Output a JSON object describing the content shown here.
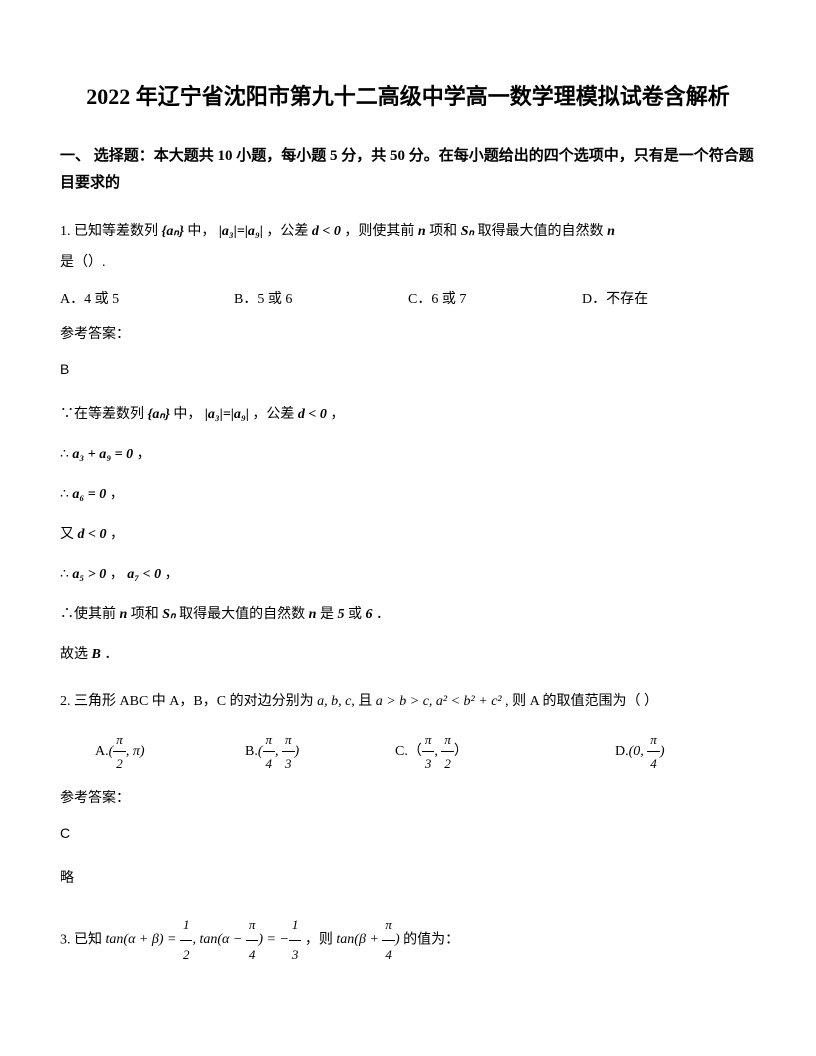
{
  "title": "2022 年辽宁省沈阳市第九十二高级中学高一数学理模拟试卷含解析",
  "section1": {
    "header": "一、 选择题：本大题共 10 小题，每小题 5 分，共 50 分。在每小题给出的四个选项中，只有是一个符合题目要求的"
  },
  "q1": {
    "text_pre": "1. 已知等差数列",
    "seq": "{aₙ}",
    "text_mid1": "中，",
    "cond1": "|a₃|=|a₉|",
    "text_mid2": "，公差",
    "cond2": "d < 0",
    "text_mid3": "，则使其前",
    "var_n": "n",
    "text_mid4": "项和",
    "var_sn": "Sₙ",
    "text_mid5": "取得最大值的自然数",
    "text_end": "是（）.",
    "optA": "A．4 或 5",
    "optB": "B．5 或 6",
    "optC": "C．6 或 7",
    "optD": "D．不存在",
    "answer_label": "参考答案：",
    "answer": "B",
    "sol1_pre": "∵在等差数列",
    "sol1_mid": "中，",
    "sol1_end": "，公差",
    "sol1_last": "，",
    "sol2": "∴",
    "sol2_eq": "a₃ + a₉ = 0",
    "sol2_end": "，",
    "sol3": "∴",
    "sol3_eq": "a₆ = 0",
    "sol3_end": "，",
    "sol4": "又",
    "sol4_eq": "d < 0",
    "sol4_end": "，",
    "sol5": "∴",
    "sol5_eq1": "a₅ > 0",
    "sol5_mid": "，",
    "sol5_eq2": "a₇ < 0",
    "sol5_end": "，",
    "sol6_pre": "∴使其前",
    "sol6_mid1": "项和",
    "sol6_mid2": "取得最大值的自然数",
    "sol6_mid3": "是",
    "sol6_val1": "5",
    "sol6_or": "或",
    "sol6_val2": "6",
    "sol6_end": "．",
    "sol7": "故选",
    "sol7_ans": "B",
    "sol7_end": "．"
  },
  "q2": {
    "text_pre": "2. 三角形 ABC 中 A，B，C 的对边分别为",
    "vars": "a, b, c,",
    "text_mid1": "且",
    "cond1": "a > b > c,",
    "text_mid2": "",
    "cond2": "a² < b² + c²",
    "text_end": ", 则 A 的取值范围为（ ）",
    "optA_label": "A.",
    "optB_label": "B.",
    "optC_label": "C.（",
    "optC_end": "）",
    "optD_label": "D.",
    "answer_label": "参考答案：",
    "answer": "C",
    "sol": "略"
  },
  "q3": {
    "text_pre": "3. 已知",
    "text_mid": "，则",
    "text_end": "的值为："
  }
}
